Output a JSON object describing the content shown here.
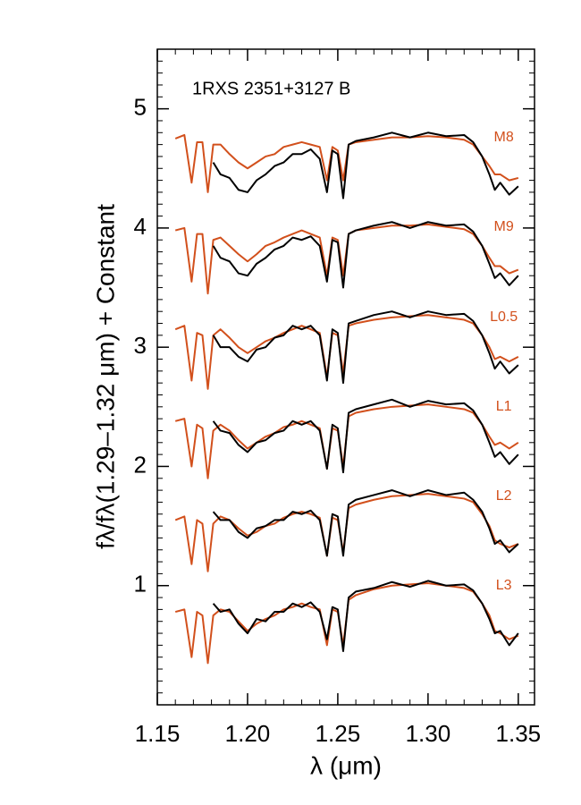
{
  "chart_data": {
    "type": "line",
    "title": "1RXS 2351+3127 B",
    "xlabel": "λ (μm)",
    "ylabel": "fλ/fλ(1.29–1.32 μm) + Constant",
    "xlim": [
      1.15,
      1.359
    ],
    "ylim": [
      0,
      5.5
    ],
    "xticks": [
      1.15,
      {
        "value": 1.2,
        "label": "1.20"
      },
      1.25,
      {
        "value": 1.3,
        "label": "1.30"
      },
      1.35
    ],
    "yticks": [
      1,
      2,
      3,
      4,
      5
    ],
    "xminor": 0.01,
    "yminor": 0.1,
    "x": [
      1.16,
      1.165,
      1.169,
      1.172,
      1.175,
      1.178,
      1.181,
      1.185,
      1.19,
      1.195,
      1.2,
      1.205,
      1.21,
      1.215,
      1.22,
      1.225,
      1.23,
      1.235,
      1.24,
      1.244,
      1.247,
      1.25,
      1.253,
      1.256,
      1.26,
      1.27,
      1.28,
      1.29,
      1.3,
      1.31,
      1.32,
      1.325,
      1.33,
      1.334,
      1.337,
      1.34,
      1.345,
      1.35
    ],
    "series": [
      {
        "name": "M8",
        "color": "#d2501c",
        "values": [
          4.75,
          4.78,
          4.38,
          4.72,
          4.72,
          4.3,
          4.7,
          4.7,
          4.62,
          4.55,
          4.5,
          4.55,
          4.6,
          4.62,
          4.68,
          4.7,
          4.72,
          4.7,
          4.68,
          4.4,
          4.68,
          4.65,
          4.4,
          4.7,
          4.72,
          4.74,
          4.76,
          4.76,
          4.77,
          4.76,
          4.74,
          4.7,
          4.6,
          4.52,
          4.45,
          4.45,
          4.4,
          4.42
        ]
      },
      {
        "color": "#000000",
        "values": [
          null,
          null,
          null,
          null,
          null,
          null,
          4.55,
          4.45,
          4.42,
          4.32,
          4.3,
          4.4,
          4.45,
          4.52,
          4.55,
          4.62,
          4.62,
          4.66,
          4.58,
          4.3,
          4.65,
          4.62,
          4.25,
          4.7,
          4.73,
          4.76,
          4.8,
          4.76,
          4.8,
          4.77,
          4.78,
          4.72,
          4.6,
          4.45,
          4.32,
          4.38,
          4.28,
          4.35
        ]
      },
      {
        "name": "M9",
        "color": "#d2501c",
        "values": [
          3.98,
          4.0,
          3.55,
          3.95,
          3.95,
          3.45,
          3.9,
          3.92,
          3.85,
          3.78,
          3.72,
          3.78,
          3.85,
          3.88,
          3.92,
          3.95,
          3.98,
          3.95,
          3.92,
          3.6,
          3.92,
          3.9,
          3.6,
          3.95,
          3.98,
          4.0,
          4.02,
          4.02,
          4.03,
          4.01,
          3.99,
          3.95,
          3.85,
          3.75,
          3.68,
          3.68,
          3.62,
          3.65
        ]
      },
      {
        "color": "#000000",
        "values": [
          null,
          null,
          null,
          null,
          null,
          null,
          3.85,
          3.75,
          3.72,
          3.62,
          3.6,
          3.7,
          3.75,
          3.82,
          3.85,
          3.92,
          3.9,
          3.93,
          3.85,
          3.55,
          3.9,
          3.88,
          3.5,
          3.95,
          3.98,
          4.02,
          4.05,
          4.0,
          4.05,
          4.02,
          4.03,
          3.97,
          3.85,
          3.7,
          3.58,
          3.62,
          3.52,
          3.6
        ]
      },
      {
        "name": "L0.5",
        "color": "#d2501c",
        "values": [
          3.15,
          3.18,
          2.72,
          3.12,
          3.1,
          2.65,
          3.1,
          3.15,
          3.08,
          3.0,
          2.95,
          3.0,
          3.05,
          3.08,
          3.12,
          3.15,
          3.18,
          3.15,
          3.12,
          2.75,
          3.12,
          3.1,
          2.78,
          3.18,
          3.2,
          3.23,
          3.25,
          3.26,
          3.27,
          3.25,
          3.23,
          3.2,
          3.1,
          3.0,
          2.9,
          2.92,
          2.88,
          2.92
        ]
      },
      {
        "color": "#000000",
        "values": [
          null,
          null,
          null,
          null,
          null,
          null,
          3.1,
          3.0,
          3.0,
          2.92,
          2.88,
          2.98,
          3.0,
          3.08,
          3.1,
          3.18,
          3.15,
          3.18,
          3.1,
          2.72,
          3.15,
          3.12,
          2.7,
          3.2,
          3.22,
          3.27,
          3.3,
          3.25,
          3.3,
          3.27,
          3.28,
          3.22,
          3.1,
          2.95,
          2.82,
          2.88,
          2.78,
          2.85
        ]
      },
      {
        "name": "L1",
        "color": "#d2501c",
        "values": [
          2.38,
          2.4,
          2.0,
          2.35,
          2.32,
          1.9,
          2.3,
          2.35,
          2.3,
          2.22,
          2.15,
          2.2,
          2.25,
          2.28,
          2.33,
          2.35,
          2.38,
          2.35,
          2.32,
          1.98,
          2.32,
          2.3,
          2.0,
          2.42,
          2.45,
          2.48,
          2.5,
          2.51,
          2.52,
          2.5,
          2.48,
          2.45,
          2.35,
          2.25,
          2.18,
          2.2,
          2.15,
          2.2
        ]
      },
      {
        "color": "#000000",
        "values": [
          null,
          null,
          null,
          null,
          null,
          null,
          2.38,
          2.3,
          2.28,
          2.18,
          2.12,
          2.2,
          2.22,
          2.28,
          2.3,
          2.38,
          2.35,
          2.38,
          2.3,
          1.98,
          2.35,
          2.32,
          1.95,
          2.45,
          2.48,
          2.52,
          2.56,
          2.5,
          2.55,
          2.52,
          2.53,
          2.47,
          2.35,
          2.2,
          2.08,
          2.12,
          2.02,
          2.1
        ]
      },
      {
        "name": "L2",
        "color": "#d2501c",
        "values": [
          1.55,
          1.58,
          1.18,
          1.55,
          1.52,
          1.12,
          1.52,
          1.58,
          1.55,
          1.48,
          1.42,
          1.45,
          1.5,
          1.52,
          1.57,
          1.6,
          1.62,
          1.6,
          1.57,
          1.25,
          1.57,
          1.55,
          1.28,
          1.65,
          1.68,
          1.72,
          1.75,
          1.76,
          1.77,
          1.75,
          1.73,
          1.7,
          1.6,
          1.5,
          1.38,
          1.35,
          1.32,
          1.35
        ]
      },
      {
        "color": "#000000",
        "values": [
          null,
          null,
          null,
          null,
          null,
          null,
          1.62,
          1.55,
          1.55,
          1.45,
          1.4,
          1.48,
          1.5,
          1.55,
          1.55,
          1.62,
          1.6,
          1.63,
          1.55,
          1.25,
          1.6,
          1.58,
          1.25,
          1.68,
          1.72,
          1.76,
          1.8,
          1.75,
          1.8,
          1.76,
          1.78,
          1.72,
          1.62,
          1.48,
          1.35,
          1.38,
          1.28,
          1.35
        ]
      },
      {
        "name": "L3",
        "color": "#d2501c",
        "values": [
          0.78,
          0.8,
          0.4,
          0.78,
          0.75,
          0.35,
          0.75,
          0.8,
          0.78,
          0.7,
          0.62,
          0.68,
          0.72,
          0.75,
          0.8,
          0.82,
          0.85,
          0.82,
          0.8,
          0.5,
          0.8,
          0.78,
          0.5,
          0.88,
          0.92,
          0.97,
          1.0,
          1.01,
          1.02,
          1.0,
          0.98,
          0.95,
          0.85,
          0.75,
          0.62,
          0.6,
          0.55,
          0.58
        ]
      },
      {
        "color": "#000000",
        "values": [
          null,
          null,
          null,
          null,
          null,
          null,
          0.85,
          0.78,
          0.8,
          0.68,
          0.6,
          0.72,
          0.7,
          0.78,
          0.78,
          0.85,
          0.82,
          0.86,
          0.78,
          0.55,
          0.82,
          0.8,
          0.45,
          0.9,
          0.95,
          0.98,
          1.03,
          0.99,
          1.04,
          1.0,
          1.01,
          0.96,
          0.85,
          0.72,
          0.6,
          0.62,
          0.5,
          0.6
        ]
      }
    ]
  }
}
